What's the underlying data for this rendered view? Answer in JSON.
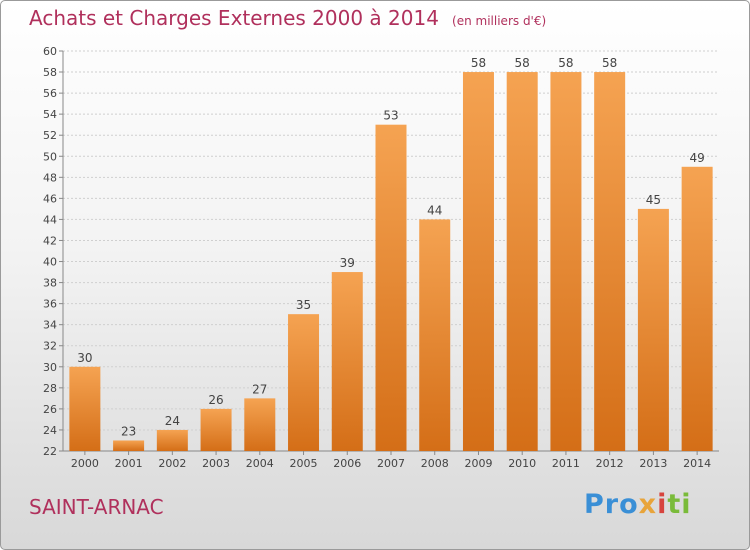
{
  "title": "Achats et Charges Externes 2000 à 2014",
  "unit": "(en milliers d'€)",
  "commune": "SAINT-ARNAC",
  "logo": {
    "text": "Proxiti",
    "parts": [
      "Pro",
      "x",
      "i",
      "ti"
    ]
  },
  "colors": {
    "title": "#b0305c",
    "bar_top": "#f5a352",
    "bar_bottom": "#d46e17",
    "grid": "#cfcfcf"
  },
  "chart_data": {
    "type": "bar",
    "title": "Achats et Charges Externes 2000 à 2014",
    "subtitle": "(en milliers d'€)",
    "xlabel": "",
    "ylabel": "",
    "categories": [
      "2000",
      "2001",
      "2002",
      "2003",
      "2004",
      "2005",
      "2006",
      "2007",
      "2008",
      "2009",
      "2010",
      "2011",
      "2012",
      "2013",
      "2014"
    ],
    "values": [
      30,
      23,
      24,
      26,
      27,
      35,
      39,
      53,
      44,
      58,
      58,
      58,
      58,
      45,
      49
    ],
    "ylim": [
      22,
      60
    ],
    "yticks": [
      22,
      24,
      26,
      28,
      30,
      32,
      34,
      36,
      38,
      40,
      42,
      44,
      46,
      48,
      50,
      52,
      54,
      56,
      58,
      60
    ],
    "grid": true,
    "data_labels": true
  }
}
